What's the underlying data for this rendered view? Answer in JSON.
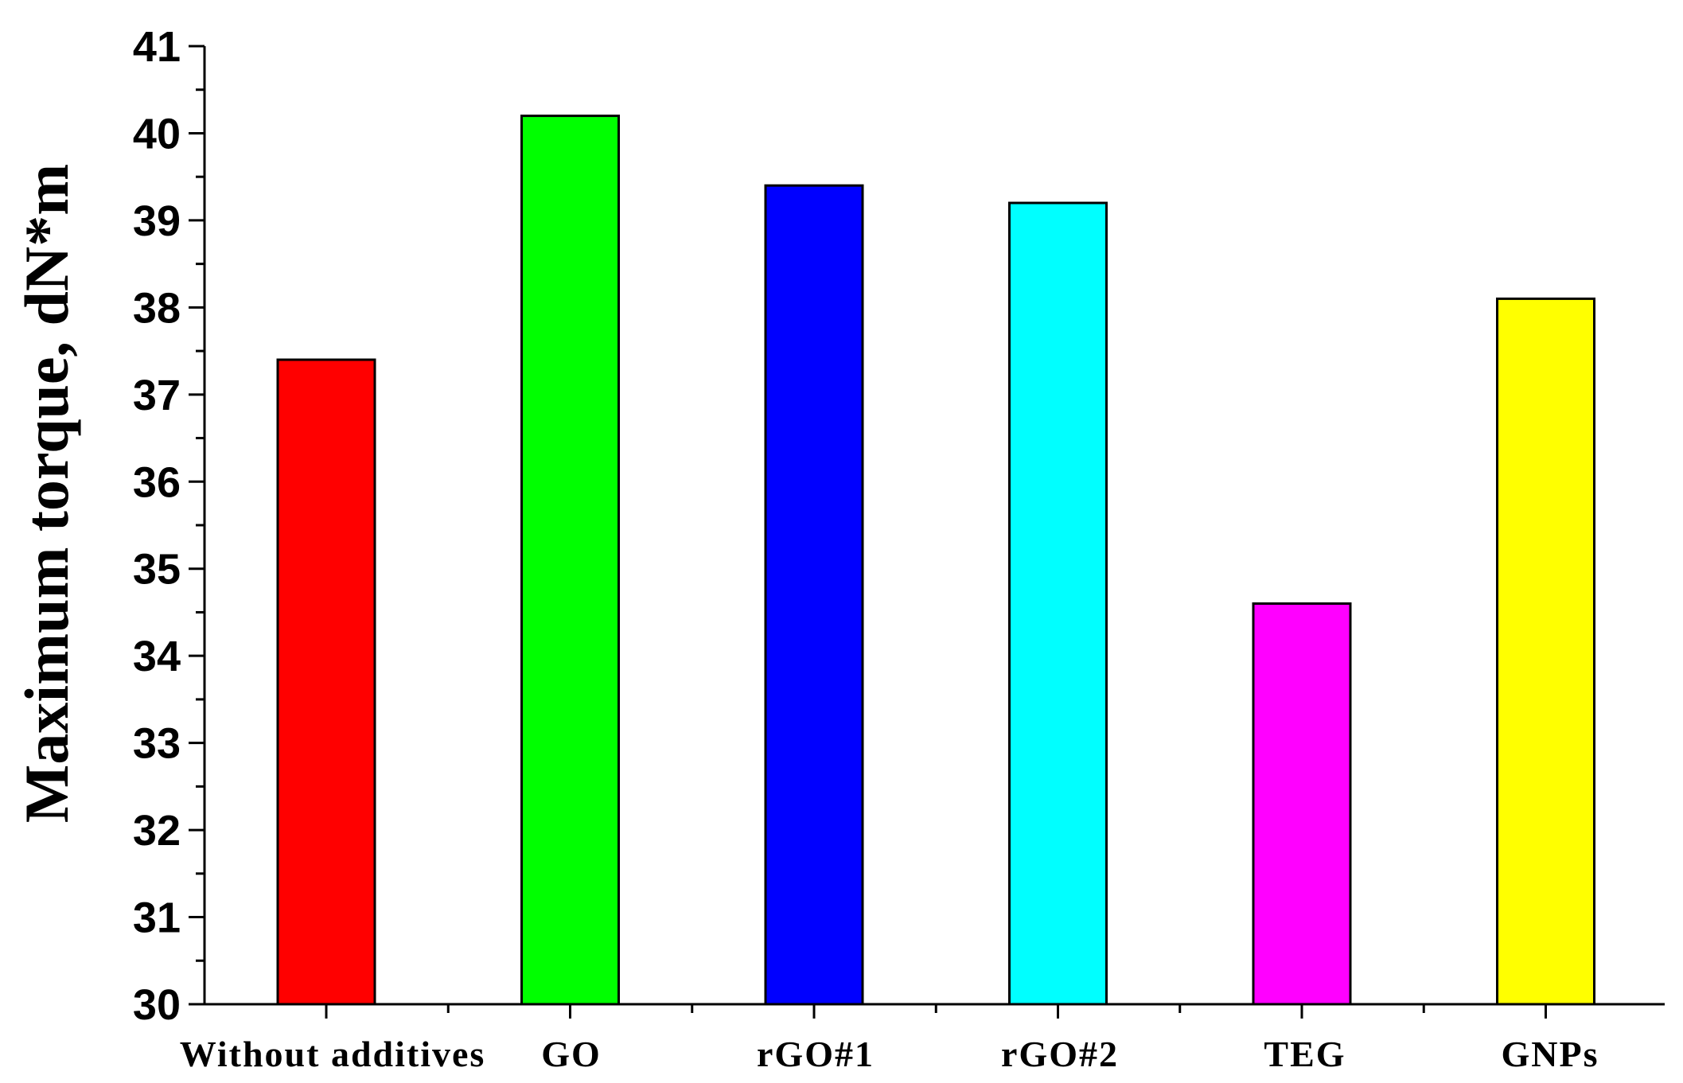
{
  "chart_data": {
    "type": "bar",
    "title": "",
    "xlabel": "",
    "ylabel": "Maximum torque, dN*m",
    "ylim": [
      30,
      41
    ],
    "yticks": [
      30,
      31,
      32,
      33,
      34,
      35,
      36,
      37,
      38,
      39,
      40,
      41
    ],
    "grid": false,
    "legend": "none",
    "categories": [
      "Without additives",
      "GO",
      "rGO#1",
      "rGO#2",
      "TEG",
      "GNPs"
    ],
    "values": [
      37.4,
      40.2,
      39.4,
      39.2,
      34.6,
      38.1
    ],
    "colors": [
      "#ff0000",
      "#00ff00",
      "#0000ff",
      "#00ffff",
      "#ff00ff",
      "#ffff00"
    ]
  }
}
